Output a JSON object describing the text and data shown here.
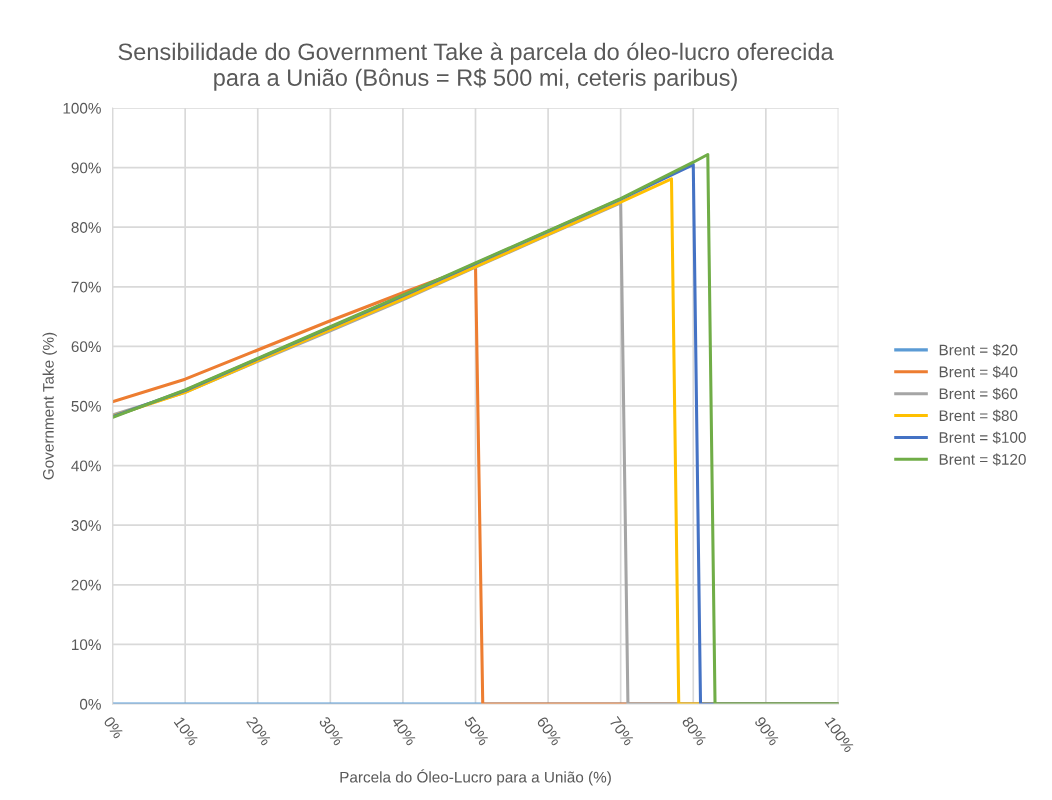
{
  "chart_data": {
    "type": "line",
    "title": "Sensibilidade do Government Take à parcela do óleo-lucro oferecida\npara a União (Bônus = R$ 500 mi, ceteris paribus)",
    "xlabel": "Parcela do Óleo-Lucro para a União (%)",
    "ylabel": "Government Take (%)",
    "xlim": [
      0,
      100
    ],
    "ylim": [
      0,
      100
    ],
    "xticks": [
      {
        "value": 0,
        "label": "0%"
      },
      {
        "value": 10,
        "label": "10%"
      },
      {
        "value": 20,
        "label": "20%"
      },
      {
        "value": 30,
        "label": "30%"
      },
      {
        "value": 40,
        "label": "40%"
      },
      {
        "value": 50,
        "label": "50%"
      },
      {
        "value": 60,
        "label": "60%"
      },
      {
        "value": 70,
        "label": "70%"
      },
      {
        "value": 80,
        "label": "80%"
      },
      {
        "value": 90,
        "label": "90%"
      },
      {
        "value": 100,
        "label": "100%"
      }
    ],
    "yticks": [
      {
        "value": 0,
        "label": "0%"
      },
      {
        "value": 10,
        "label": "10%"
      },
      {
        "value": 20,
        "label": "20%"
      },
      {
        "value": 30,
        "label": "30%"
      },
      {
        "value": 40,
        "label": "40%"
      },
      {
        "value": 50,
        "label": "50%"
      },
      {
        "value": 60,
        "label": "60%"
      },
      {
        "value": 70,
        "label": "70%"
      },
      {
        "value": 80,
        "label": "80%"
      },
      {
        "value": 90,
        "label": "90%"
      },
      {
        "value": 100,
        "label": "100%"
      }
    ],
    "grid": true,
    "legend": "right",
    "marker": "none",
    "line_style": "solid",
    "series": [
      {
        "name": "Brent = $20",
        "color": "#5b9bd5",
        "x": [
          0,
          100
        ],
        "values": [
          0,
          0
        ]
      },
      {
        "name": "Brent = $40",
        "color": "#ed7d31",
        "x": [
          0,
          10,
          20,
          30,
          40,
          50,
          51,
          100
        ],
        "values": [
          50.7,
          54.5,
          59.4,
          64.3,
          69.0,
          73.6,
          0,
          0
        ]
      },
      {
        "name": "Brent = $60",
        "color": "#a5a5a5",
        "x": [
          0,
          10,
          20,
          30,
          40,
          50,
          60,
          70,
          71,
          100
        ],
        "values": [
          48.5,
          52.3,
          57.5,
          62.6,
          67.8,
          73.3,
          78.7,
          84.1,
          0,
          0
        ]
      },
      {
        "name": "Brent = $80",
        "color": "#ffc000",
        "x": [
          0,
          10,
          20,
          30,
          40,
          50,
          60,
          70,
          77,
          78,
          100
        ],
        "values": [
          48.3,
          52.3,
          57.6,
          62.8,
          68.0,
          73.4,
          78.8,
          84.2,
          88.1,
          0,
          0
        ]
      },
      {
        "name": "Brent = $100",
        "color": "#4472c4",
        "x": [
          0,
          10,
          20,
          30,
          40,
          50,
          60,
          70,
          80,
          81,
          100
        ],
        "values": [
          48.2,
          52.6,
          57.9,
          63.2,
          68.5,
          73.9,
          79.3,
          84.7,
          90.5,
          0,
          0
        ]
      },
      {
        "name": "Brent = $120",
        "color": "#70ad47",
        "x": [
          0,
          10,
          20,
          30,
          40,
          50,
          60,
          70,
          80,
          82,
          83,
          100
        ],
        "values": [
          48.1,
          52.7,
          58.0,
          63.3,
          68.6,
          74.0,
          79.4,
          84.8,
          90.9,
          92.2,
          0,
          0
        ]
      }
    ]
  }
}
